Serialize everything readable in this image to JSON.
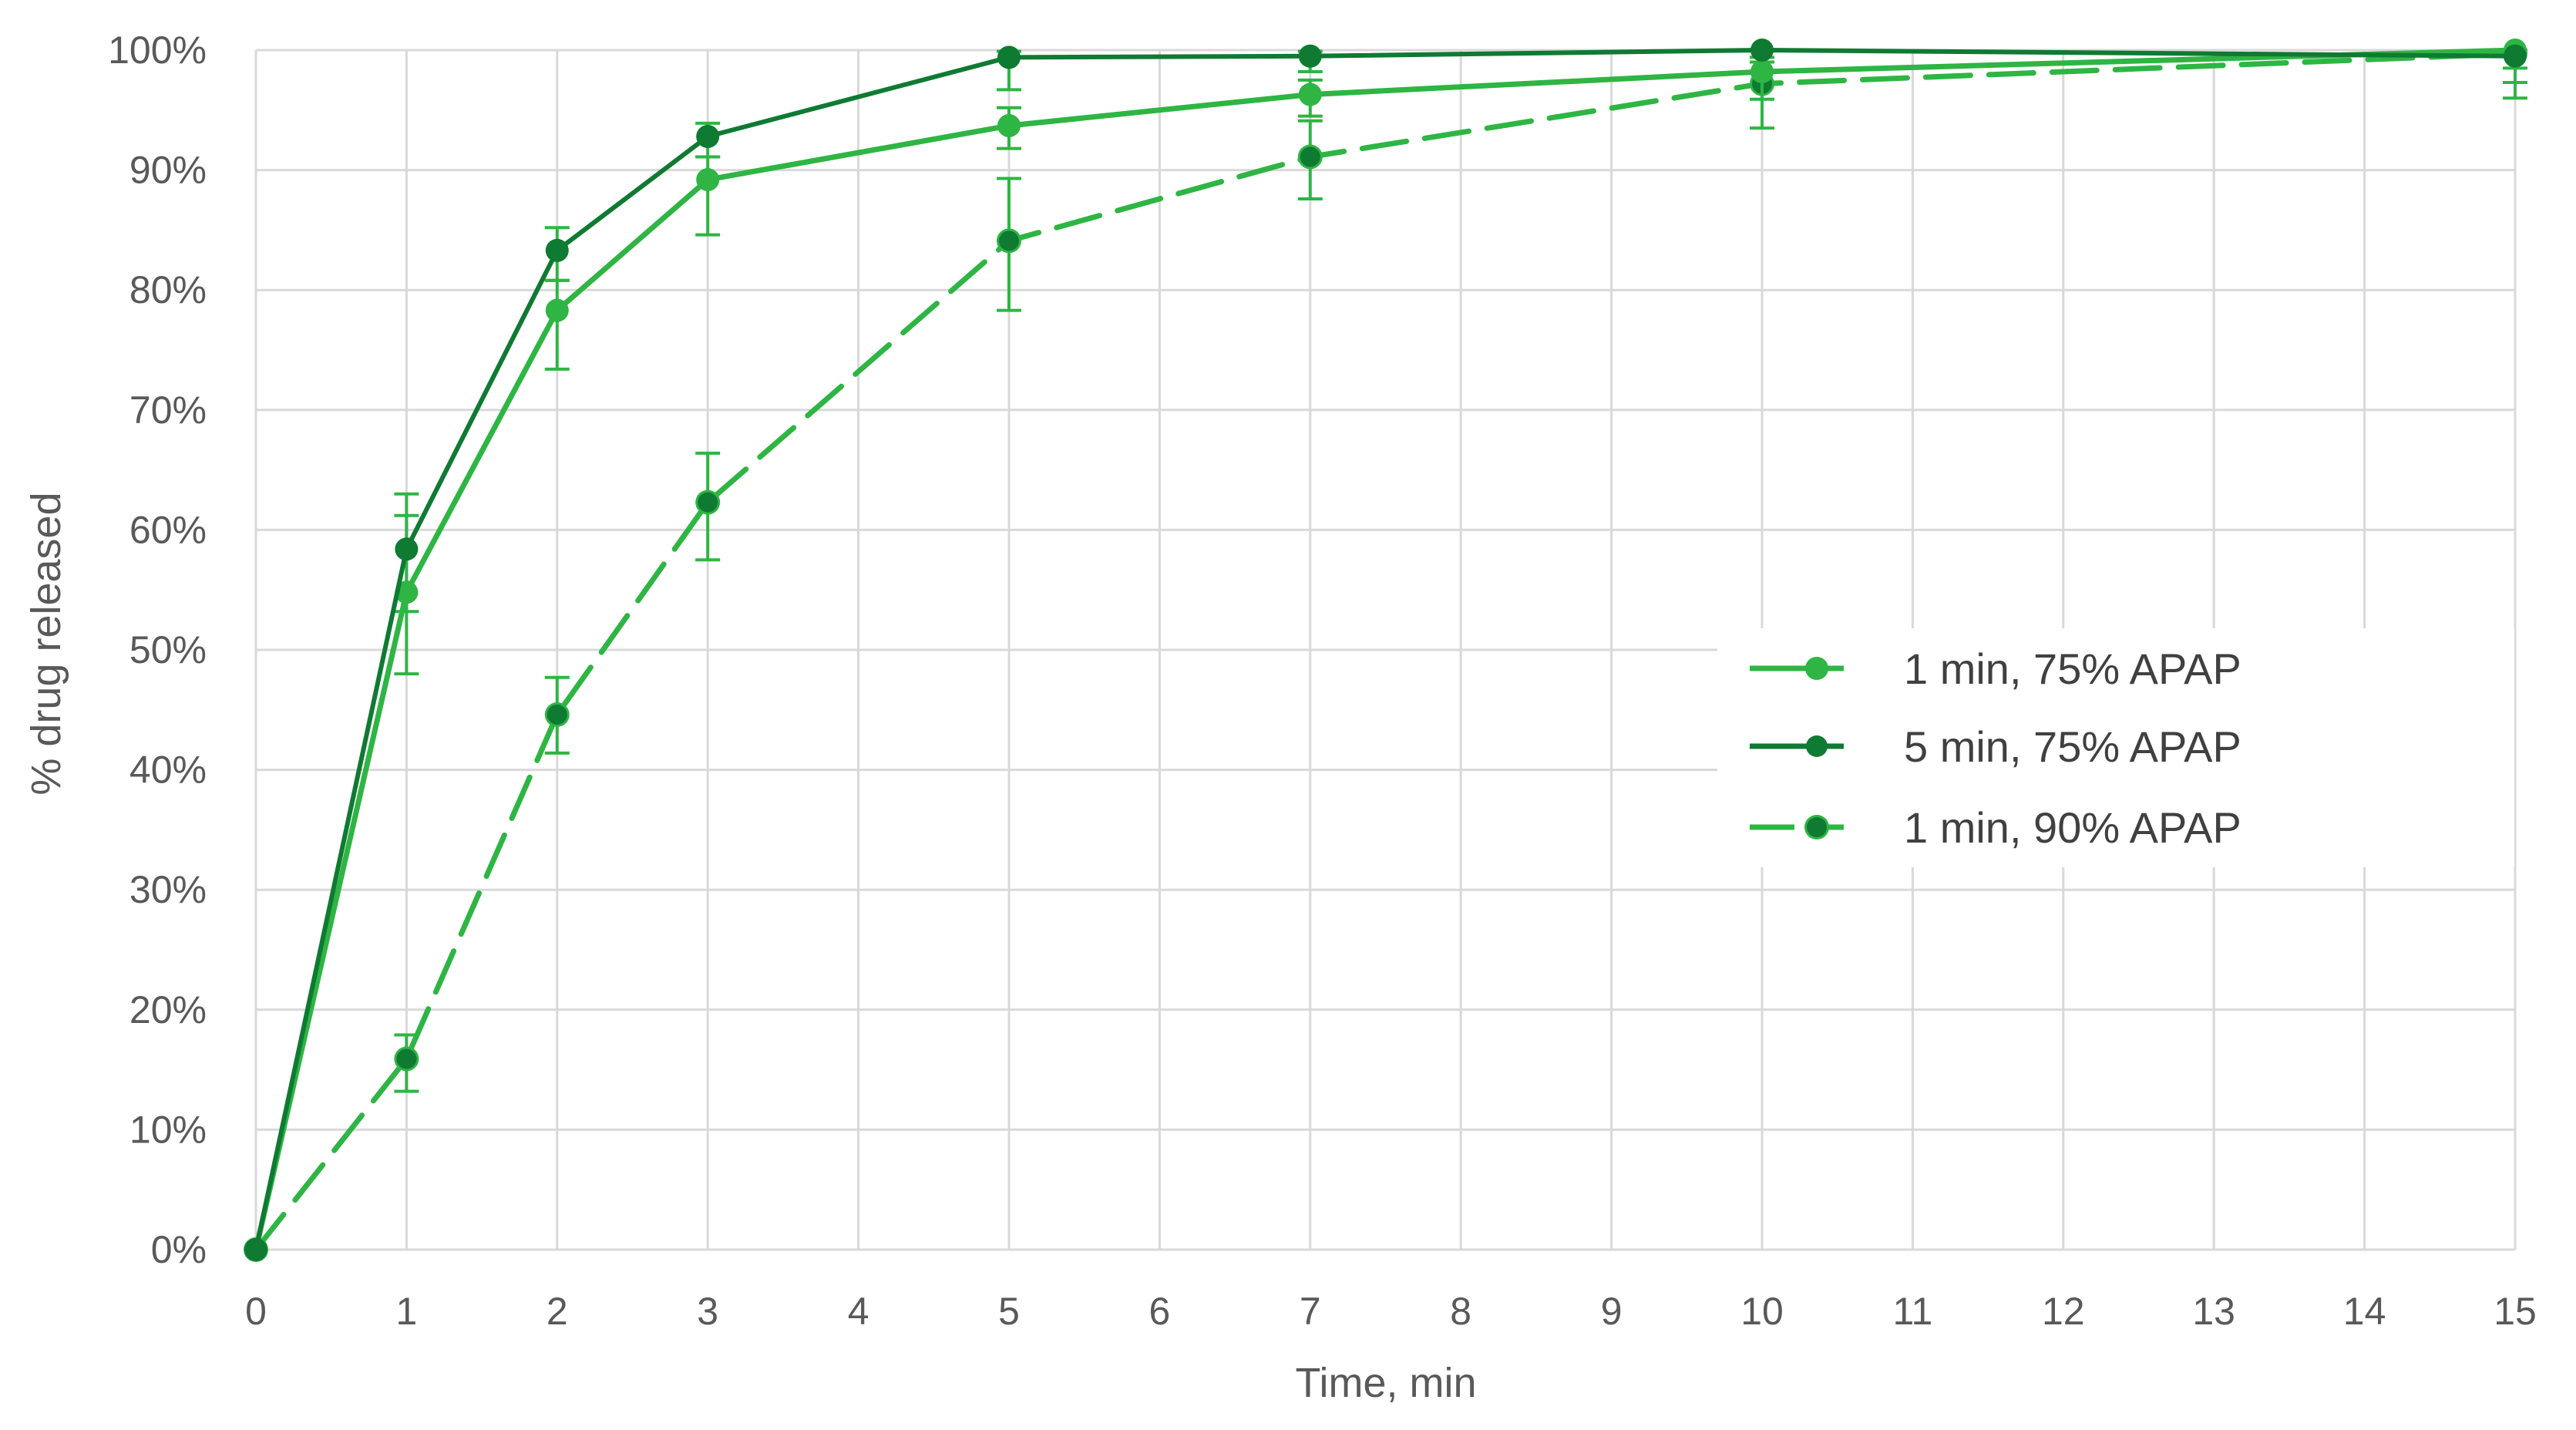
{
  "chart_data": {
    "type": "line",
    "title": "",
    "xlabel": "Time, min",
    "ylabel": "% drug released",
    "xlim": [
      0,
      15
    ],
    "ylim": [
      0,
      100
    ],
    "x_ticks": [
      0,
      1,
      2,
      3,
      4,
      5,
      6,
      7,
      8,
      9,
      10,
      11,
      12,
      13,
      14,
      15
    ],
    "y_ticks": [
      "0%",
      "10%",
      "20%",
      "30%",
      "40%",
      "50%",
      "60%",
      "70%",
      "80%",
      "90%",
      "100%"
    ],
    "grid": true,
    "legend_position": "right-center (inside plot)",
    "series": [
      {
        "name": "1 min, 75% APAP",
        "color": "#2eb543",
        "marker_color": "#2eb543",
        "line_style": "solid",
        "x": [
          0,
          1,
          2,
          3,
          5,
          7,
          10,
          15
        ],
        "values": [
          0,
          54.8,
          78.3,
          89.2,
          93.7,
          96.3,
          98.2,
          100
        ],
        "error_low": [
          0,
          48.0,
          73.4,
          84.6,
          91.8,
          94.5,
          95.9,
          97.3
        ],
        "error_high": [
          0,
          61.2,
          80.8,
          91.1,
          95.2,
          97.5,
          99.0,
          100
        ]
      },
      {
        "name": "5 min, 75% APAP",
        "color": "#0f7a32",
        "marker_color": "#0f7a32",
        "line_style": "solid",
        "x": [
          0,
          1,
          2,
          3,
          5,
          7,
          10,
          15
        ],
        "values": [
          0,
          58.4,
          83.3,
          92.8,
          99.4,
          99.5,
          100,
          99.5
        ],
        "error_low": [
          0,
          53.2,
          80.8,
          91.1,
          96.7,
          98.2,
          99.4,
          98.5
        ],
        "error_high": [
          0,
          63.0,
          85.2,
          93.9,
          99.9,
          99.9,
          100,
          99.9
        ]
      },
      {
        "name": "1 min, 90% APAP",
        "color": "#2eb543",
        "marker_color": "#0f7a32",
        "line_style": "dashed",
        "x": [
          0,
          1,
          2,
          3,
          5,
          7,
          10,
          15
        ],
        "values": [
          0,
          15.9,
          44.6,
          62.3,
          84.1,
          91.1,
          97.2,
          99.7
        ],
        "error_low": [
          0,
          13.2,
          41.4,
          57.5,
          78.3,
          87.6,
          93.5,
          96.0
        ],
        "error_high": [
          0,
          17.9,
          47.7,
          66.4,
          89.3,
          94.1,
          99.0,
          100
        ]
      }
    ]
  },
  "axes": {
    "x_title": "Time, min",
    "y_title": "% drug released"
  },
  "legend": {
    "items": [
      {
        "label": "1 min, 75% APAP"
      },
      {
        "label": "5 min, 75% APAP"
      },
      {
        "label": "1 min, 90% APAP"
      }
    ]
  },
  "colors": {
    "light_green": "#2eb543",
    "dark_green": "#0f7a32",
    "grid": "#d9d9d9",
    "text": "#595959"
  }
}
